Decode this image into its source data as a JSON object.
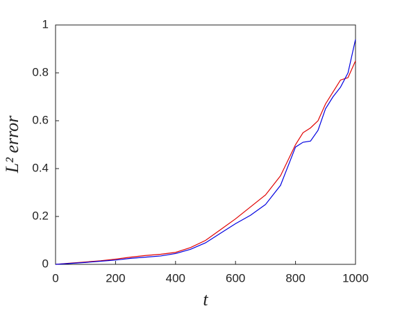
{
  "chart_data": {
    "type": "line",
    "xlabel": "t",
    "ylabel": "L² error",
    "x": [
      0,
      50,
      100,
      150,
      200,
      250,
      300,
      350,
      400,
      450,
      500,
      550,
      600,
      650,
      700,
      750,
      800,
      825,
      850,
      875,
      900,
      925,
      950,
      975,
      1000
    ],
    "series": [
      {
        "color": "#e00000",
        "values": [
          0,
          0.005,
          0.01,
          0.015,
          0.022,
          0.03,
          0.037,
          0.042,
          0.05,
          0.07,
          0.1,
          0.145,
          0.19,
          0.24,
          0.29,
          0.37,
          0.5,
          0.55,
          0.57,
          0.6,
          0.67,
          0.72,
          0.77,
          0.78,
          0.85
        ]
      },
      {
        "color": "#0000e0",
        "values": [
          0,
          0.004,
          0.008,
          0.013,
          0.018,
          0.025,
          0.03,
          0.035,
          0.045,
          0.063,
          0.09,
          0.13,
          0.17,
          0.205,
          0.25,
          0.33,
          0.49,
          0.51,
          0.515,
          0.56,
          0.65,
          0.7,
          0.74,
          0.8,
          0.94
        ]
      }
    ],
    "xlim": [
      0,
      1000
    ],
    "xticks": [
      0,
      200,
      400,
      600,
      800,
      1000
    ],
    "ylim": [
      0,
      1
    ],
    "yticks": [
      0,
      0.2,
      0.4,
      0.6,
      0.8,
      1
    ],
    "grid": false
  }
}
